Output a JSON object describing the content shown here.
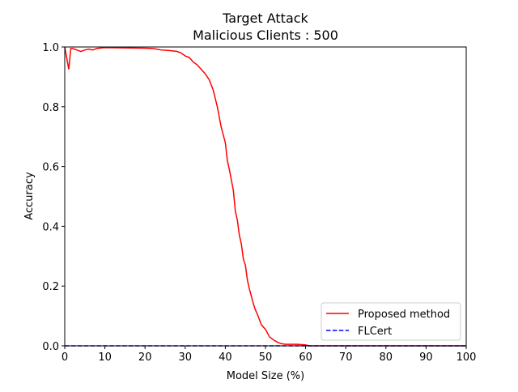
{
  "chart_data": {
    "type": "line",
    "title": "Target Attack",
    "subtitle": "Malicious Clients : 500",
    "x_label": "Model Size (%)",
    "y_label": "Accuracy",
    "xlim": [
      0,
      100
    ],
    "ylim": [
      0,
      1
    ],
    "xticks": [
      0,
      10,
      20,
      30,
      40,
      50,
      60,
      70,
      80,
      90,
      100
    ],
    "yticks": [
      {
        "value": 0,
        "label": "0.0"
      },
      0.2,
      0.4,
      0.6,
      0.8,
      {
        "value": 1,
        "label": "1.0"
      }
    ],
    "legend": "lower right",
    "series": [
      {
        "name": "Proposed method",
        "color": "#ff0000",
        "dash": "solid",
        "x": [
          0,
          1,
          1.5,
          2,
          3,
          4,
          5,
          6,
          7,
          8,
          10,
          15,
          20,
          22,
          24,
          26,
          28,
          29,
          30,
          31,
          32,
          33,
          34,
          35,
          36,
          37,
          38,
          39,
          40,
          40.5,
          41,
          42,
          42.5,
          43,
          43.5,
          44,
          44.5,
          45,
          45.5,
          46,
          47,
          47.5,
          48,
          49,
          50,
          51,
          52,
          53,
          54,
          55,
          58,
          60,
          61,
          100
        ],
        "values": [
          1.0,
          0.925,
          0.995,
          0.995,
          0.99,
          0.985,
          0.99,
          0.993,
          0.99,
          0.995,
          0.998,
          0.997,
          0.996,
          0.995,
          0.99,
          0.988,
          0.985,
          0.98,
          0.97,
          0.965,
          0.95,
          0.94,
          0.925,
          0.91,
          0.89,
          0.855,
          0.8,
          0.73,
          0.68,
          0.62,
          0.59,
          0.52,
          0.45,
          0.42,
          0.37,
          0.34,
          0.29,
          0.27,
          0.22,
          0.19,
          0.14,
          0.12,
          0.105,
          0.07,
          0.055,
          0.03,
          0.02,
          0.012,
          0.007,
          0.005,
          0.005,
          0.003,
          0,
          0
        ]
      },
      {
        "name": "FLCert",
        "color": "#0000ff",
        "dash": "dashed",
        "x": [
          0,
          100
        ],
        "values": [
          0,
          0
        ]
      }
    ]
  }
}
